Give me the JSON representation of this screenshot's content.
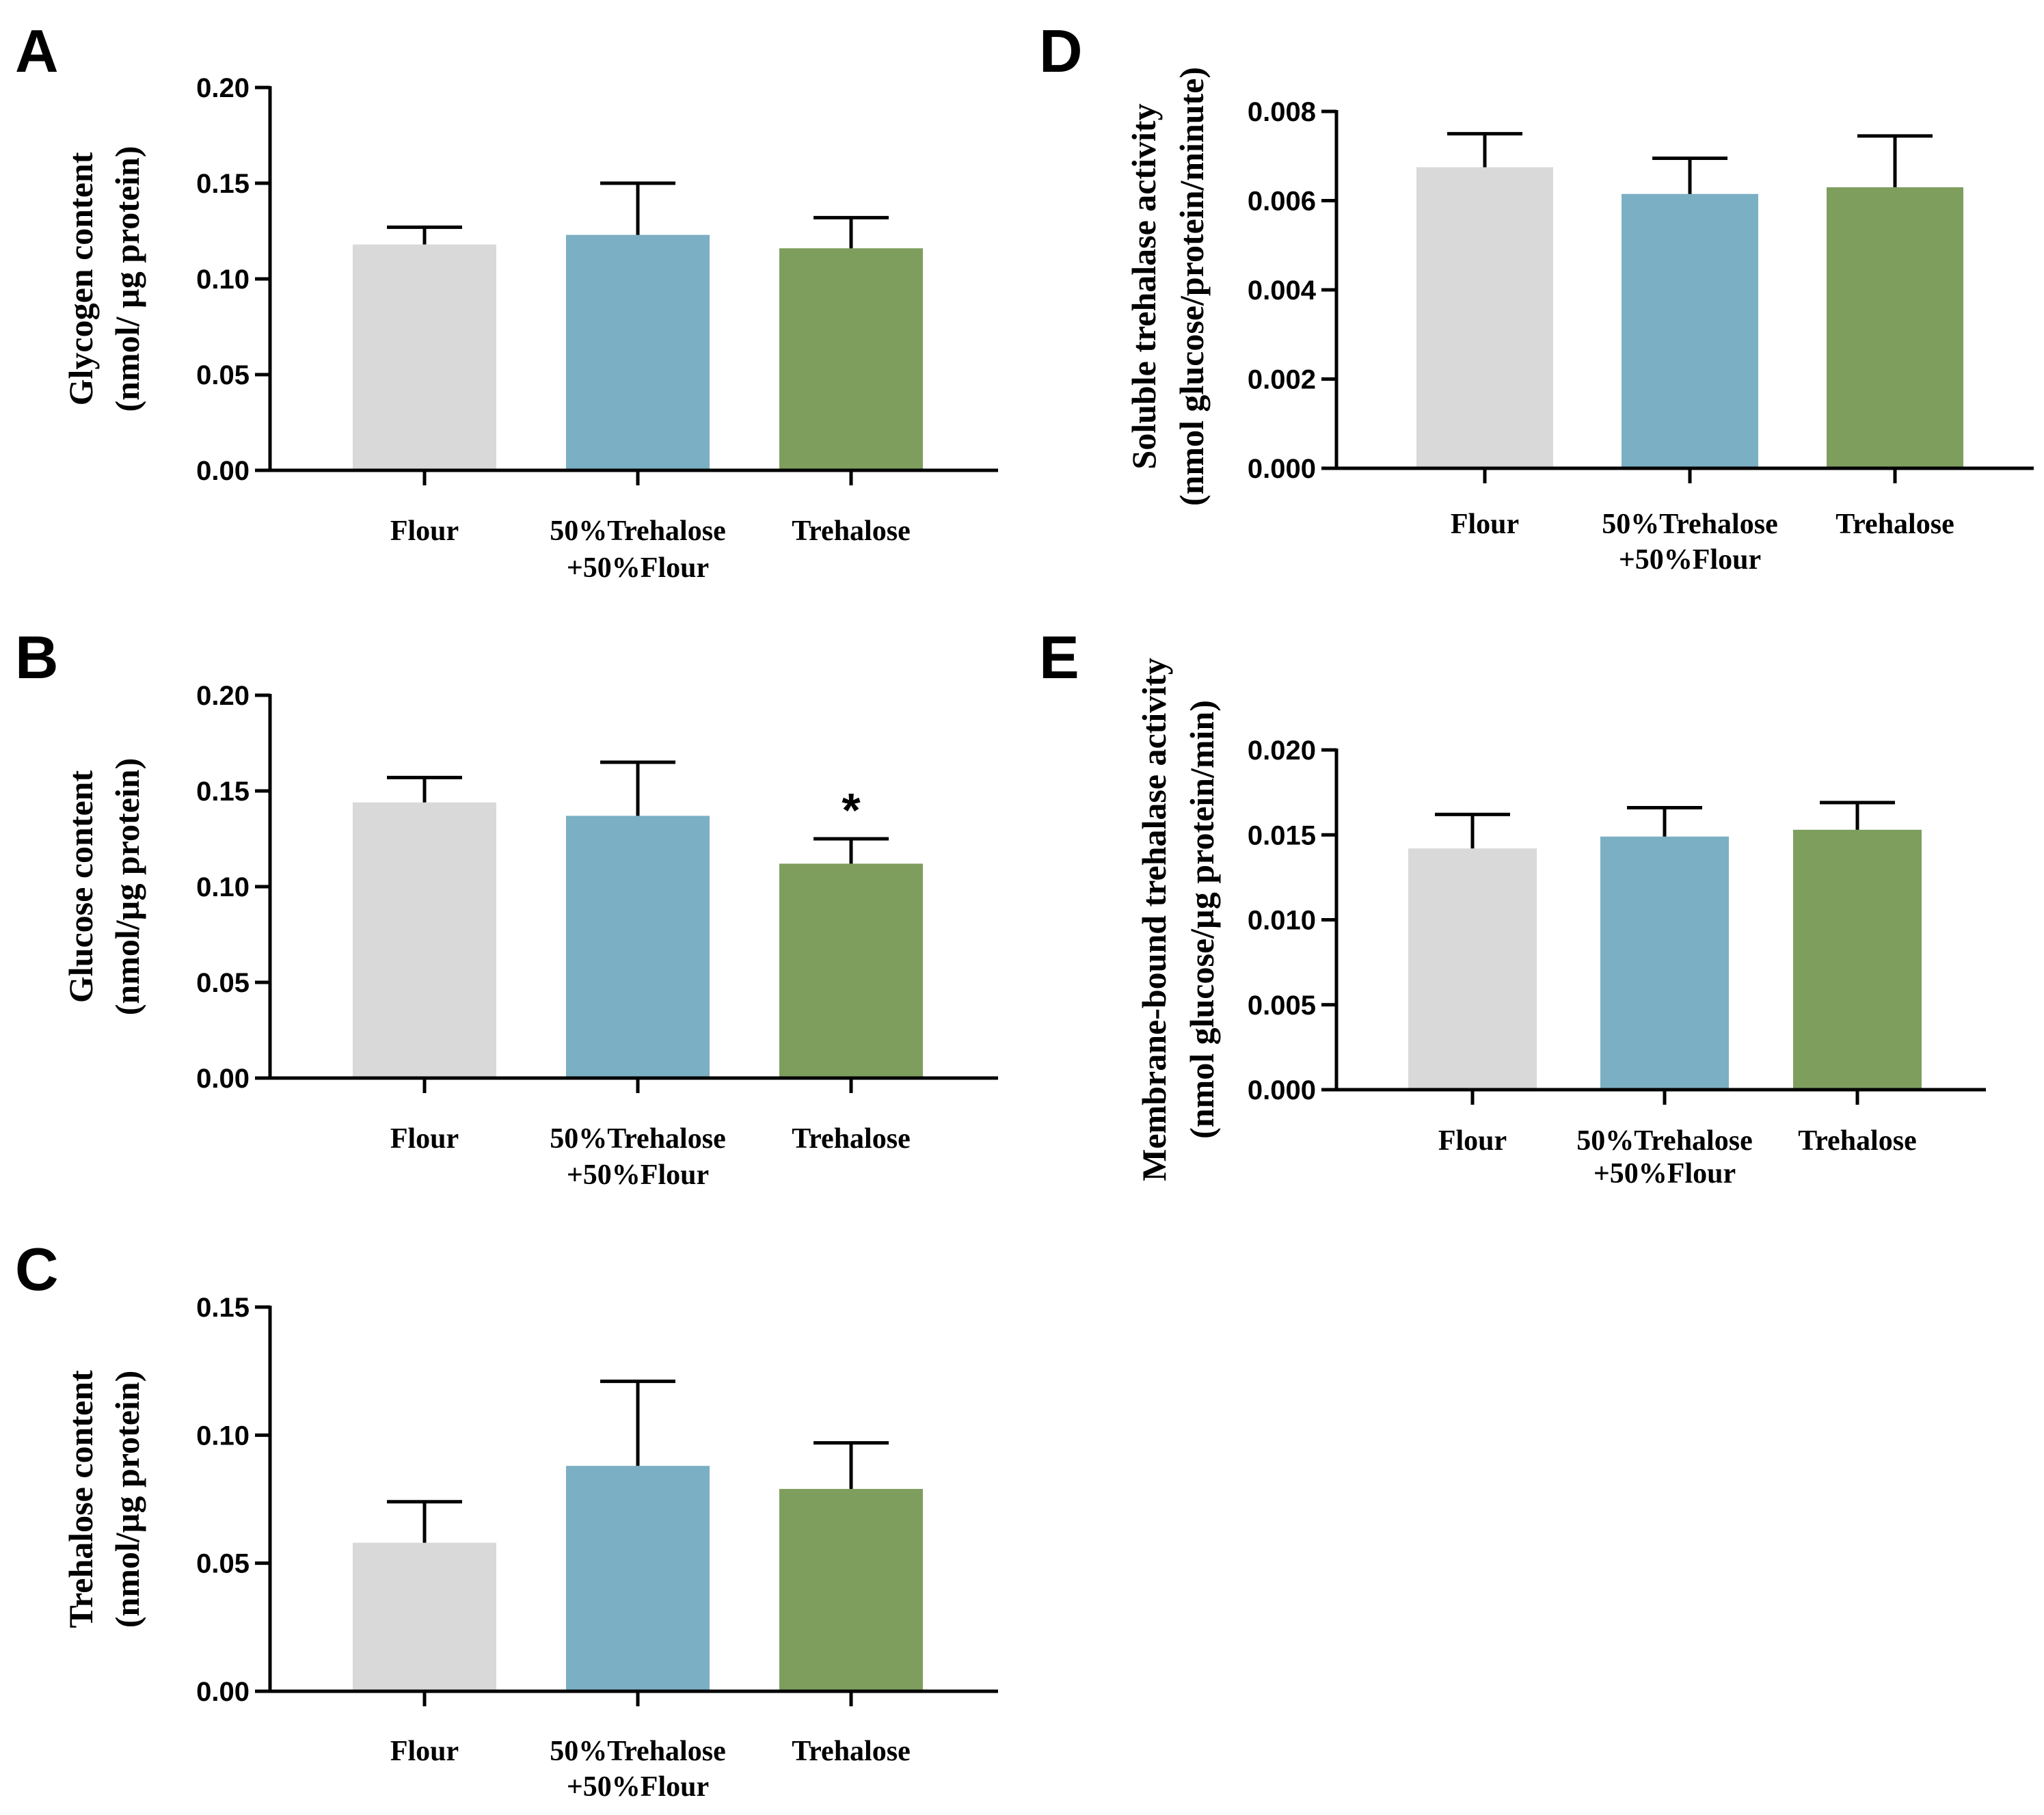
{
  "chart_data": [
    {
      "panel": "A",
      "type": "bar",
      "categories": [
        "Flour",
        "50%Trehalose\n+50%Flour",
        "Trehalose"
      ],
      "values": [
        0.118,
        0.123,
        0.116
      ],
      "errors": [
        0.009,
        0.027,
        0.016
      ],
      "significance": [
        "",
        "",
        ""
      ],
      "ylabel": [
        "Glycogen content",
        "(nmol/ µg protein)"
      ],
      "ylim": [
        0,
        0.2
      ],
      "yticks": [
        "0.00",
        "0.05",
        "0.10",
        "0.15",
        "0.20"
      ],
      "colors": [
        "#d9d9d9",
        "#7bafc4",
        "#7e9e5e"
      ],
      "grid": false
    },
    {
      "panel": "B",
      "type": "bar",
      "categories": [
        "Flour",
        "50%Trehalose\n+50%Flour",
        "Trehalose"
      ],
      "values": [
        0.144,
        0.137,
        0.112
      ],
      "errors": [
        0.013,
        0.028,
        0.013
      ],
      "significance": [
        "",
        "",
        "*"
      ],
      "ylabel": [
        "Glucose content",
        "(nmol/µg protein)"
      ],
      "ylim": [
        0,
        0.2
      ],
      "yticks": [
        "0.00",
        "0.05",
        "0.10",
        "0.15",
        "0.20"
      ],
      "colors": [
        "#d9d9d9",
        "#7bafc4",
        "#7e9e5e"
      ],
      "grid": false
    },
    {
      "panel": "C",
      "type": "bar",
      "categories": [
        "Flour",
        "50%Trehalose\n+50%Flour",
        "Trehalose"
      ],
      "values": [
        0.058,
        0.088,
        0.079
      ],
      "errors": [
        0.016,
        0.033,
        0.018
      ],
      "significance": [
        "",
        "",
        ""
      ],
      "ylabel": [
        "Trehalose content",
        "(nmol/µg protein)"
      ],
      "ylim": [
        0,
        0.15
      ],
      "yticks": [
        "0.00",
        "0.05",
        "0.10",
        "0.15"
      ],
      "colors": [
        "#d9d9d9",
        "#7bafc4",
        "#7e9e5e"
      ],
      "grid": false
    },
    {
      "panel": "D",
      "type": "bar",
      "categories": [
        "Flour",
        "50%Trehalose\n+50%Flour",
        "Trehalose"
      ],
      "values": [
        0.00675,
        0.00615,
        0.0063
      ],
      "errors": [
        0.00075,
        0.0008,
        0.00115
      ],
      "significance": [
        "",
        "",
        ""
      ],
      "ylabel": [
        "Soluble trehalase activity",
        "(nmol glucose/protein/minute)"
      ],
      "ylim": [
        0,
        0.008
      ],
      "yticks": [
        "0.000",
        "0.002",
        "0.004",
        "0.006",
        "0.008"
      ],
      "colors": [
        "#d9d9d9",
        "#7bafc4",
        "#7e9e5e"
      ],
      "grid": false
    },
    {
      "panel": "E",
      "type": "bar",
      "categories": [
        "Flour",
        "50%Trehalose\n+50%Flour",
        "Trehalose"
      ],
      "values": [
        0.0142,
        0.0149,
        0.0153
      ],
      "errors": [
        0.002,
        0.0017,
        0.0016
      ],
      "significance": [
        "",
        "",
        ""
      ],
      "ylabel": [
        "Membrane-bound trehalase activity",
        "(nmol glucose/µg protein/min)"
      ],
      "ylim": [
        0,
        0.02
      ],
      "yticks": [
        "0.000",
        "0.005",
        "0.010",
        "0.015",
        "0.020"
      ],
      "colors": [
        "#d9d9d9",
        "#7bafc4",
        "#7e9e5e"
      ],
      "grid": false
    }
  ]
}
